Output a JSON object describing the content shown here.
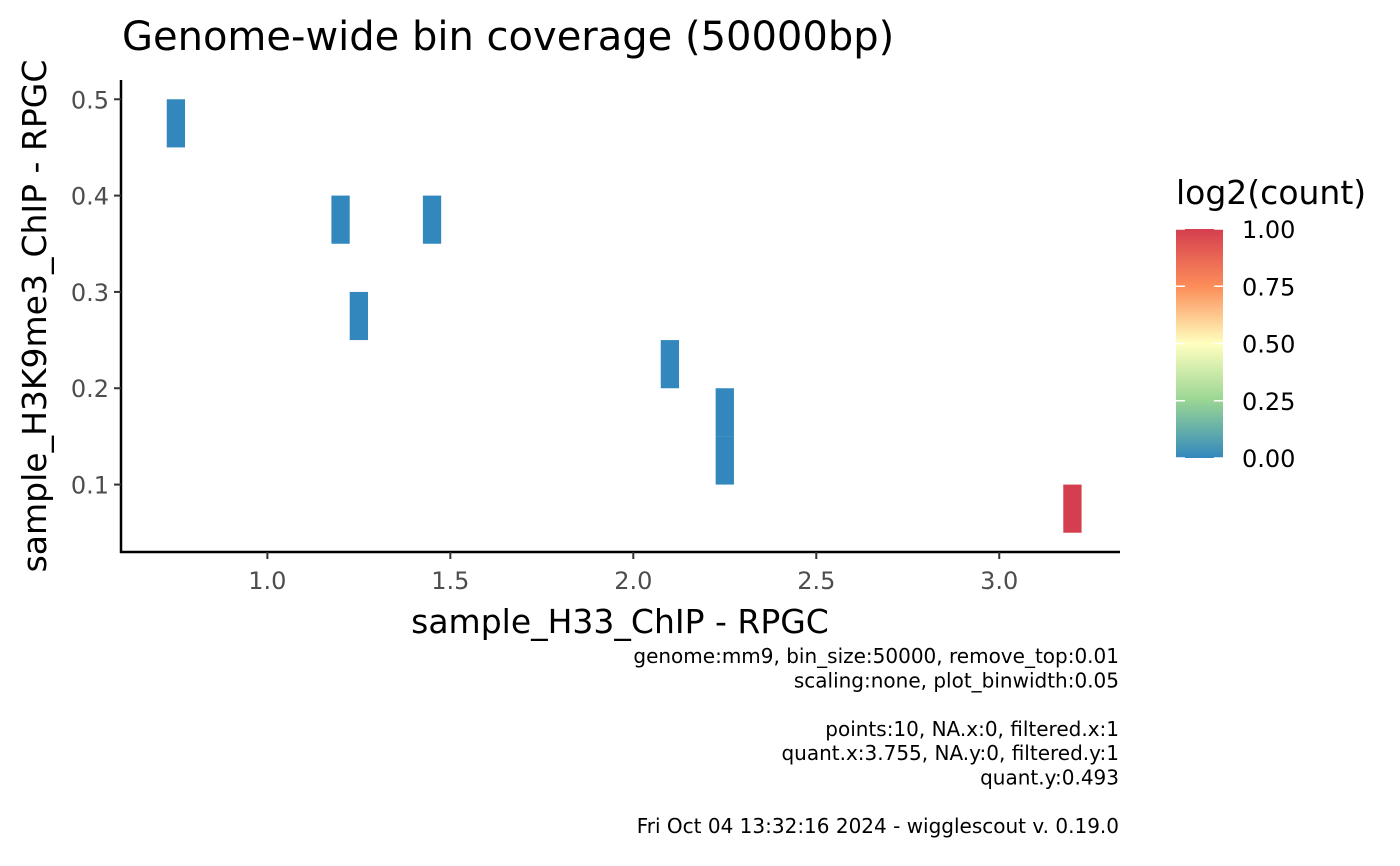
{
  "chart_data": {
    "type": "heatmap",
    "title": "Genome-wide bin coverage (50000bp)",
    "xlabel": "sample_H33_ChIP - RPGC",
    "ylabel": "sample_H3K9me3_ChIP - RPGC",
    "xlim": [
      0.6,
      3.33
    ],
    "ylim": [
      0.03,
      0.52
    ],
    "x_ticks": [
      1.0,
      1.5,
      2.0,
      2.5,
      3.0
    ],
    "x_tick_labels": [
      "1.0",
      "1.5",
      "2.0",
      "2.5",
      "3.0"
    ],
    "y_ticks": [
      0.1,
      0.2,
      0.3,
      0.4,
      0.5
    ],
    "y_tick_labels": [
      "0.1",
      "0.2",
      "0.3",
      "0.4",
      "0.5"
    ],
    "bin_width_x": 0.05,
    "bin_height_y": 0.05,
    "grid": false,
    "bins": [
      {
        "x": 0.75,
        "y": 0.475,
        "count": 0
      },
      {
        "x": 1.2,
        "y": 0.375,
        "count": 0
      },
      {
        "x": 1.45,
        "y": 0.375,
        "count": 0
      },
      {
        "x": 1.25,
        "y": 0.275,
        "count": 0
      },
      {
        "x": 2.1,
        "y": 0.225,
        "count": 0
      },
      {
        "x": 2.25,
        "y": 0.175,
        "count": 0
      },
      {
        "x": 2.25,
        "y": 0.125,
        "count": 0
      },
      {
        "x": 3.2,
        "y": 0.075,
        "count": 1
      }
    ],
    "legend": {
      "title": "log2(count)",
      "position": "right",
      "range": [
        0,
        1
      ],
      "ticks": [
        0.0,
        0.25,
        0.5,
        0.75,
        1.0
      ],
      "tick_labels": [
        "0.00",
        "0.25",
        "0.50",
        "0.75",
        "1.00"
      ],
      "colors": [
        "#3288bd",
        "#99d594",
        "#ffffbf",
        "#fc8d59",
        "#d53e4f"
      ]
    },
    "caption_lines": [
      "genome:mm9, bin_size:50000, remove_top:0.01",
      "scaling:none, plot_binwidth:0.05",
      "",
      "points:10, NA.x:0, filtered.x:1",
      "quant.x:3.755, NA.y:0, filtered.y:1",
      "quant.y:0.493",
      "",
      "Fri Oct 04 13:32:16 2024 - wigglescout v. 0.19.0"
    ]
  }
}
